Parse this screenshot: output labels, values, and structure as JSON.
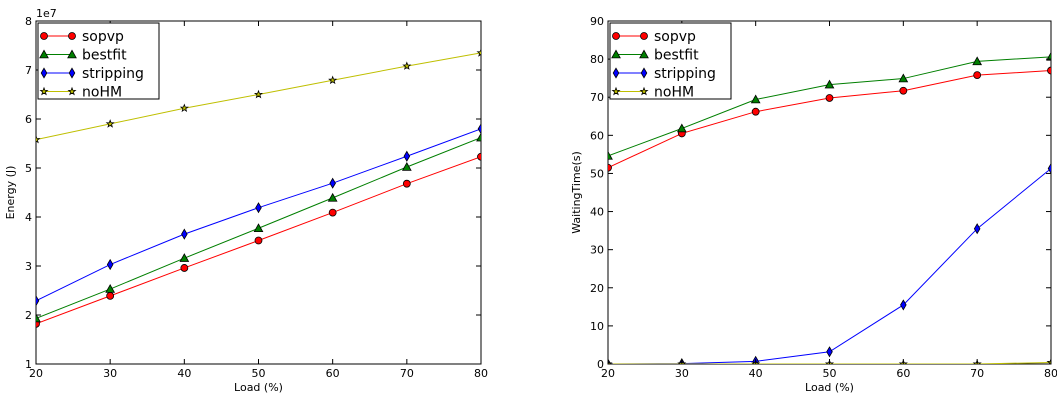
{
  "chart_data": [
    {
      "type": "line",
      "xlabel": "Load (%)",
      "ylabel": "Energy (J)",
      "offset_label": "1e7",
      "x": [
        20,
        30,
        40,
        50,
        60,
        70,
        80
      ],
      "xlim": [
        20,
        80
      ],
      "ylim": [
        1,
        8
      ],
      "xticks": [
        "20",
        "30",
        "40",
        "50",
        "60",
        "70",
        "80"
      ],
      "yticks": [
        "1",
        "2",
        "3",
        "4",
        "5",
        "6",
        "7",
        "8"
      ],
      "grid": false,
      "legend_position": "upper-left",
      "series": [
        {
          "name": "sopvp",
          "color": "#ff0000",
          "marker": "circle",
          "values": [
            1.82,
            2.39,
            2.96,
            3.52,
            4.09,
            4.68,
            5.23
          ]
        },
        {
          "name": "bestfit",
          "color": "#007f00",
          "marker": "triangle",
          "values": [
            1.93,
            2.53,
            3.16,
            3.77,
            4.39,
            5.02,
            5.62
          ]
        },
        {
          "name": "stripping",
          "color": "#0000ff",
          "marker": "diamond",
          "values": [
            2.29,
            3.03,
            3.65,
            4.19,
            4.69,
            5.24,
            5.8
          ]
        },
        {
          "name": "noHM",
          "color": "#bfbf00",
          "marker": "star",
          "values": [
            5.58,
            5.9,
            6.22,
            6.5,
            6.79,
            7.08,
            7.35
          ]
        }
      ]
    },
    {
      "type": "line",
      "xlabel": "Load (%)",
      "ylabel": "WaitingTime(s)",
      "x": [
        20,
        30,
        40,
        50,
        60,
        70,
        80
      ],
      "xlim": [
        20,
        80
      ],
      "ylim": [
        0,
        90
      ],
      "xticks": [
        "20",
        "30",
        "40",
        "50",
        "60",
        "70",
        "80"
      ],
      "yticks": [
        "0",
        "10",
        "20",
        "30",
        "40",
        "50",
        "60",
        "70",
        "80",
        "90"
      ],
      "grid": false,
      "legend_position": "upper-left",
      "series": [
        {
          "name": "sopvp",
          "color": "#ff0000",
          "marker": "circle",
          "values": [
            51.5,
            60.5,
            66.2,
            69.8,
            71.7,
            75.8,
            77.0
          ]
        },
        {
          "name": "bestfit",
          "color": "#007f00",
          "marker": "triangle",
          "values": [
            54.6,
            61.8,
            69.4,
            73.3,
            74.9,
            79.4,
            80.6
          ]
        },
        {
          "name": "stripping",
          "color": "#0000ff",
          "marker": "diamond",
          "values": [
            0.0,
            0.1,
            0.7,
            3.2,
            15.5,
            35.5,
            51.3
          ]
        },
        {
          "name": "noHM",
          "color": "#bfbf00",
          "marker": "star",
          "values": [
            0.0,
            0.0,
            0.0,
            0.0,
            0.0,
            0.0,
            0.4
          ]
        }
      ]
    }
  ]
}
